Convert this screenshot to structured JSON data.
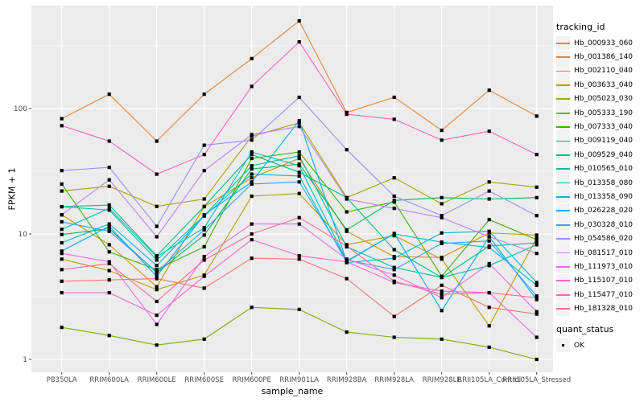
{
  "chart_data": {
    "type": "line",
    "title": "",
    "xlabel": "sample_name",
    "ylabel": "FPKM + 1",
    "x_categories": [
      "PB350LA",
      "RRIM600LA",
      "RRIM600LE",
      "RRIM600SE",
      "RRIM600PE",
      "RRIM901LA",
      "RRIM928BA",
      "RRIM928LA",
      "RRIM928LE",
      "RRII105LA_Control",
      "RRII105LA_Stressed"
    ],
    "y_scale": "log10",
    "y_ticks": [
      1,
      10,
      100
    ],
    "y_tick_labels": [
      "1",
      "10",
      "100"
    ],
    "y_minor_breaks": [
      3.162,
      31.623,
      316.23
    ],
    "ylim": [
      0.79,
      630
    ],
    "grid": true,
    "legend_position": "right",
    "legend_title": "tracking_id",
    "point_shape": "filled-black-square",
    "series": [
      {
        "name": "Hb_000933_060",
        "color": "#F8766D",
        "values": [
          4.2,
          4.3,
          4.4,
          3.7,
          6.4,
          6.3,
          4.4,
          2.2,
          3.9,
          2.6,
          2.3
        ]
      },
      {
        "name": "Hb_001386_140",
        "color": "#EA8331",
        "values": [
          83,
          130,
          55,
          130,
          250,
          500,
          93,
          123,
          67,
          140,
          87
        ]
      },
      {
        "name": "Hb_002110_040",
        "color": "#D89000",
        "values": [
          14.2,
          8.2,
          3.8,
          16.5,
          28,
          40,
          10.5,
          6.6,
          6.5,
          10.2,
          9.8
        ]
      },
      {
        "name": "Hb_003633_040",
        "color": "#C09B00",
        "values": [
          6.3,
          5.1,
          3.6,
          4.7,
          20,
          21,
          8.2,
          9.7,
          6.3,
          1.85,
          9.3
        ]
      },
      {
        "name": "Hb_005023_030",
        "color": "#A3A500",
        "values": [
          22,
          24,
          16.6,
          19,
          60,
          77,
          19.5,
          28,
          17.4,
          26,
          23.6
        ]
      },
      {
        "name": "Hb_005333_190",
        "color": "#7CAE00",
        "values": [
          1.8,
          1.55,
          1.3,
          1.45,
          2.6,
          2.5,
          1.65,
          1.5,
          1.45,
          1.25,
          1.0
        ]
      },
      {
        "name": "Hb_007333_040",
        "color": "#39B600",
        "values": [
          25,
          7.2,
          5.2,
          7.9,
          40,
          45,
          15,
          18,
          4.6,
          13,
          9
        ]
      },
      {
        "name": "Hb_009119_040",
        "color": "#00BB4E",
        "values": [
          9.9,
          11,
          4.9,
          9.8,
          33,
          36,
          10.8,
          18.5,
          19.5,
          19,
          19.5
        ]
      },
      {
        "name": "Hb_009529_040",
        "color": "#00BF7D",
        "values": [
          16.5,
          17,
          6.7,
          16.6,
          43,
          31,
          19.5,
          7.5,
          4.5,
          8,
          8.5
        ]
      },
      {
        "name": "Hb_010565_010",
        "color": "#00C1A3",
        "values": [
          16.5,
          15.5,
          6.2,
          14,
          35,
          42,
          7.9,
          5.4,
          4.5,
          5.6,
          8.2
        ]
      },
      {
        "name": "Hb_013358_080",
        "color": "#00BFC4",
        "values": [
          10.9,
          16,
          6.6,
          11.2,
          45,
          35,
          6.1,
          10,
          8.6,
          7.8,
          3.9
        ]
      },
      {
        "name": "Hb_013358_090",
        "color": "#00BAE0",
        "values": [
          8.5,
          12,
          5.6,
          13.9,
          30,
          29,
          5.9,
          6.4,
          10.2,
          10.5,
          4.1
        ]
      },
      {
        "name": "Hb_026228_020",
        "color": "#00B0F6",
        "values": [
          7.3,
          11.5,
          4.6,
          14.2,
          26,
          80,
          6.0,
          10.1,
          2.45,
          9.5,
          3.0
        ]
      },
      {
        "name": "Hb_030328_010",
        "color": "#35A2FF",
        "values": [
          12.5,
          10.5,
          5.0,
          10.8,
          25,
          26,
          6.2,
          5.2,
          8.4,
          8.8,
          3.2
        ]
      },
      {
        "name": "Hb_054586_020",
        "color": "#9590FF",
        "values": [
          32,
          34,
          11.5,
          51,
          56,
          123,
          47,
          20,
          14,
          22,
          14
        ]
      },
      {
        "name": "Hb_081517_010",
        "color": "#C77CFF",
        "values": [
          14.2,
          27,
          9.5,
          32,
          62,
          72,
          19,
          16,
          13.5,
          9.5,
          7
        ]
      },
      {
        "name": "Hb_111973_010",
        "color": "#E76BF3",
        "values": [
          7.0,
          6.0,
          1.9,
          6.6,
          12,
          12,
          6.3,
          4.7,
          3.1,
          5.8,
          2.4
        ]
      },
      {
        "name": "Hb_115107_010",
        "color": "#FA62DB",
        "values": [
          3.4,
          3.4,
          2.25,
          4.6,
          9,
          6.7,
          6.0,
          4.1,
          3.5,
          3.4,
          1.5
        ]
      },
      {
        "name": "Hb_115477_010",
        "color": "#FF62BC",
        "values": [
          73,
          55,
          30,
          43,
          150,
          340,
          90,
          82,
          56,
          66,
          43
        ]
      },
      {
        "name": "Hb_181328_010",
        "color": "#FF6A98",
        "values": [
          5.2,
          5.8,
          2.9,
          6.2,
          10,
          13.5,
          8,
          4.2,
          3.3,
          3.4,
          3.1
        ]
      }
    ],
    "quant_legend": {
      "title": "quant_status",
      "items": [
        {
          "label": "OK",
          "marker": "black-square"
        }
      ]
    }
  },
  "colors": {
    "page_bg": "#FFFFFF",
    "panel_bg": "#EBEBEB",
    "grid": "#FFFFFF",
    "tick_mark": "#333333",
    "tick_label": "#4D4D4D",
    "axis_title": "#000000",
    "legend_key_bg": "#F2F2F2",
    "point": "#000000"
  }
}
